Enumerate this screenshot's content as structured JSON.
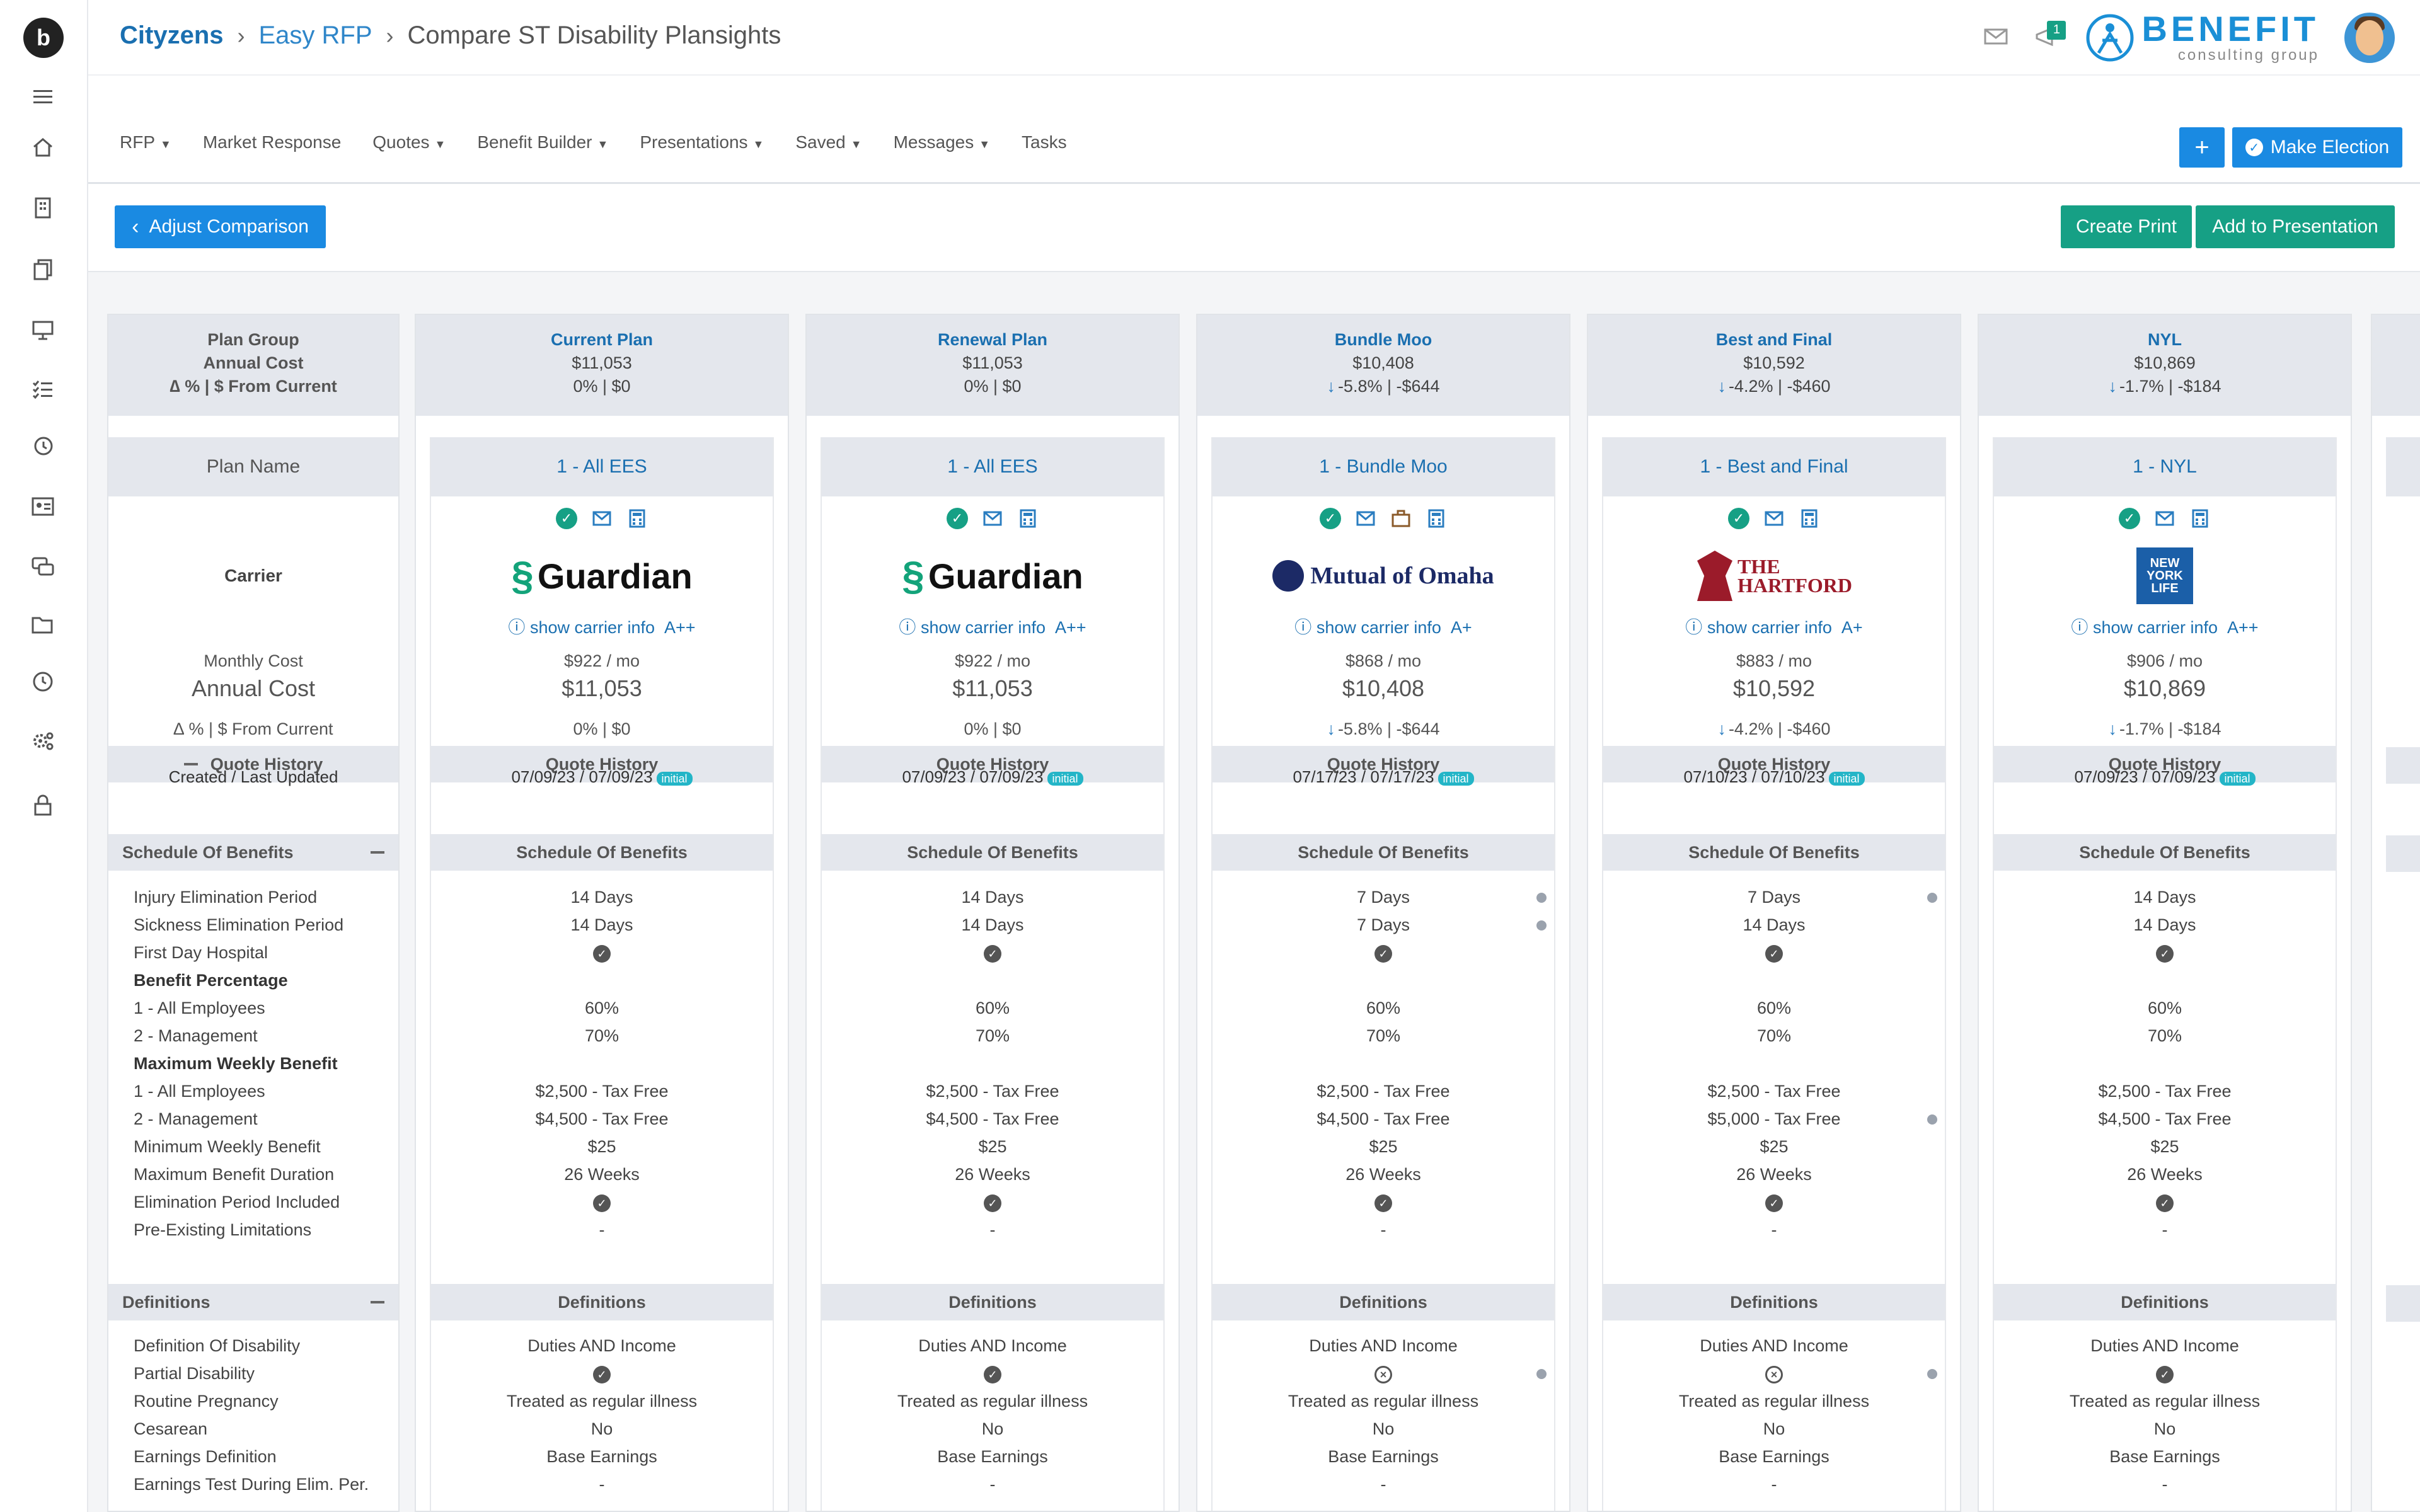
{
  "breadcrumb": [
    "Cityzens",
    "Easy RFP",
    "Compare ST Disability Plansights"
  ],
  "header": {
    "notification_count": "1",
    "brand_name": "BENEFIT",
    "brand_sub": "consulting group"
  },
  "nav": [
    {
      "label": "RFP",
      "dropdown": true
    },
    {
      "label": "Market Response",
      "dropdown": false
    },
    {
      "label": "Quotes",
      "dropdown": true
    },
    {
      "label": "Benefit Builder",
      "dropdown": true
    },
    {
      "label": "Presentations",
      "dropdown": true
    },
    {
      "label": "Saved",
      "dropdown": true
    },
    {
      "label": "Messages",
      "dropdown": true
    },
    {
      "label": "Tasks",
      "dropdown": false
    }
  ],
  "buttons": {
    "plus": "+",
    "make_election": "Make Election",
    "adjust": "Adjust Comparison",
    "create_print": "Create Print",
    "add_presentation": "Add to Presentation"
  },
  "labels": {
    "plan_group": "Plan Group",
    "annual_cost": "Annual Cost",
    "delta": "∆ % | $ From Current",
    "plan_name": "Plan Name",
    "carrier": "Carrier",
    "monthly_cost": "Monthly Cost",
    "quote_history": "Quote History",
    "created": "Created / Last Updated",
    "schedule": "Schedule Of Benefits",
    "definitions": "Definitions",
    "show_carrier": "show carrier info",
    "initial": "initial"
  },
  "schedule_labels": [
    {
      "t": "Injury Elimination Period",
      "b": false
    },
    {
      "t": "Sickness Elimination Period",
      "b": false
    },
    {
      "t": "First Day Hospital",
      "b": false
    },
    {
      "t": "Benefit Percentage",
      "b": true
    },
    {
      "t": "1 - All Employees",
      "b": false
    },
    {
      "t": "2 - Management",
      "b": false
    },
    {
      "t": "Maximum Weekly Benefit",
      "b": true
    },
    {
      "t": "1 - All Employees",
      "b": false
    },
    {
      "t": "2 - Management",
      "b": false
    },
    {
      "t": "Minimum Weekly Benefit",
      "b": false
    },
    {
      "t": "Maximum Benefit Duration",
      "b": false
    },
    {
      "t": "Elimination Period Included",
      "b": false
    },
    {
      "t": "Pre-Existing Limitations",
      "b": false
    }
  ],
  "definition_labels": [
    "Definition Of Disability",
    "Partial Disability",
    "Routine Pregnancy",
    "Cesarean",
    "Earnings Definition",
    "Earnings Test During Elim. Per."
  ],
  "plans": [
    {
      "title": "Current Plan",
      "annual": "$11,053",
      "delta": "0% | $0",
      "down": false,
      "plan_name": "1 - All EES",
      "carrier": "guardian",
      "carrier_text": "Guardian",
      "rating": "A++",
      "monthly": "$922 / mo",
      "dates": "07/09/23 / 07/09/23",
      "schedule": [
        {
          "v": "14 Days"
        },
        {
          "v": "14 Days"
        },
        {
          "v": "check"
        },
        {
          "v": ""
        },
        {
          "v": "60%"
        },
        {
          "v": "70%"
        },
        {
          "v": ""
        },
        {
          "v": "$2,500 - Tax Free"
        },
        {
          "v": "$4,500 - Tax Free"
        },
        {
          "v": "$25"
        },
        {
          "v": "26 Weeks"
        },
        {
          "v": "check"
        },
        {
          "v": "-"
        }
      ],
      "definitions": [
        {
          "v": "Duties AND Income"
        },
        {
          "v": "check"
        },
        {
          "v": "Treated as regular illness"
        },
        {
          "v": "No"
        },
        {
          "v": "Base Earnings"
        },
        {
          "v": "-"
        }
      ]
    },
    {
      "title": "Renewal Plan",
      "annual": "$11,053",
      "delta": "0% | $0",
      "down": false,
      "plan_name": "1 - All EES",
      "carrier": "guardian",
      "carrier_text": "Guardian",
      "rating": "A++",
      "monthly": "$922 / mo",
      "dates": "07/09/23 / 07/09/23",
      "schedule": [
        {
          "v": "14 Days"
        },
        {
          "v": "14 Days"
        },
        {
          "v": "check"
        },
        {
          "v": ""
        },
        {
          "v": "60%"
        },
        {
          "v": "70%"
        },
        {
          "v": ""
        },
        {
          "v": "$2,500 - Tax Free"
        },
        {
          "v": "$4,500 - Tax Free"
        },
        {
          "v": "$25"
        },
        {
          "v": "26 Weeks"
        },
        {
          "v": "check"
        },
        {
          "v": "-"
        }
      ],
      "definitions": [
        {
          "v": "Duties AND Income"
        },
        {
          "v": "check"
        },
        {
          "v": "Treated as regular illness"
        },
        {
          "v": "No"
        },
        {
          "v": "Base Earnings"
        },
        {
          "v": "-"
        }
      ]
    },
    {
      "title": "Bundle Moo",
      "annual": "$10,408",
      "delta": "-5.8% | -$644",
      "down": true,
      "plan_name": "1 - Bundle Moo",
      "carrier": "mutual",
      "carrier_text": "Mutual of Omaha",
      "rating": "A+",
      "monthly": "$868 / mo",
      "dates": "07/17/23 / 07/17/23",
      "schedule": [
        {
          "v": "7 Days",
          "d": true
        },
        {
          "v": "7 Days",
          "d": true
        },
        {
          "v": "check"
        },
        {
          "v": ""
        },
        {
          "v": "60%"
        },
        {
          "v": "70%"
        },
        {
          "v": ""
        },
        {
          "v": "$2,500 - Tax Free"
        },
        {
          "v": "$4,500 - Tax Free"
        },
        {
          "v": "$25"
        },
        {
          "v": "26 Weeks"
        },
        {
          "v": "check"
        },
        {
          "v": "-"
        }
      ],
      "definitions": [
        {
          "v": "Duties AND Income"
        },
        {
          "v": "x",
          "d": true
        },
        {
          "v": "Treated as regular illness"
        },
        {
          "v": "No"
        },
        {
          "v": "Base Earnings"
        },
        {
          "v": "-"
        }
      ]
    },
    {
      "title": "Best and Final",
      "annual": "$10,592",
      "delta": "-4.2% | -$460",
      "down": true,
      "plan_name": "1 - Best and Final",
      "carrier": "hartford",
      "carrier_text": "THE HARTFORD",
      "rating": "A+",
      "monthly": "$883 / mo",
      "dates": "07/10/23 / 07/10/23",
      "schedule": [
        {
          "v": "7 Days",
          "d": true
        },
        {
          "v": "14 Days"
        },
        {
          "v": "check"
        },
        {
          "v": ""
        },
        {
          "v": "60%"
        },
        {
          "v": "70%"
        },
        {
          "v": ""
        },
        {
          "v": "$2,500 - Tax Free"
        },
        {
          "v": "$5,000 - Tax Free",
          "d": true
        },
        {
          "v": "$25"
        },
        {
          "v": "26 Weeks"
        },
        {
          "v": "check"
        },
        {
          "v": "-"
        }
      ],
      "definitions": [
        {
          "v": "Duties AND Income"
        },
        {
          "v": "x",
          "d": true
        },
        {
          "v": "Treated as regular illness"
        },
        {
          "v": "No"
        },
        {
          "v": "Base Earnings"
        },
        {
          "v": "-"
        }
      ]
    },
    {
      "title": "NYL",
      "annual": "$10,869",
      "delta": "-1.7% | -$184",
      "down": true,
      "plan_name": "1 - NYL",
      "carrier": "nyl",
      "carrier_text": "NEW YORK LIFE",
      "rating": "A++",
      "monthly": "$906 / mo",
      "dates": "07/09/23 / 07/09/23",
      "schedule": [
        {
          "v": "14 Days"
        },
        {
          "v": "14 Days"
        },
        {
          "v": "check"
        },
        {
          "v": ""
        },
        {
          "v": "60%"
        },
        {
          "v": "70%"
        },
        {
          "v": ""
        },
        {
          "v": "$2,500 - Tax Free"
        },
        {
          "v": "$4,500 - Tax Free"
        },
        {
          "v": "$25"
        },
        {
          "v": "26 Weeks"
        },
        {
          "v": "check"
        },
        {
          "v": "-"
        }
      ],
      "definitions": [
        {
          "v": "Duties AND Income"
        },
        {
          "v": "check"
        },
        {
          "v": "Treated as regular illness"
        },
        {
          "v": "No"
        },
        {
          "v": "Base Earnings"
        },
        {
          "v": "-"
        }
      ]
    }
  ]
}
